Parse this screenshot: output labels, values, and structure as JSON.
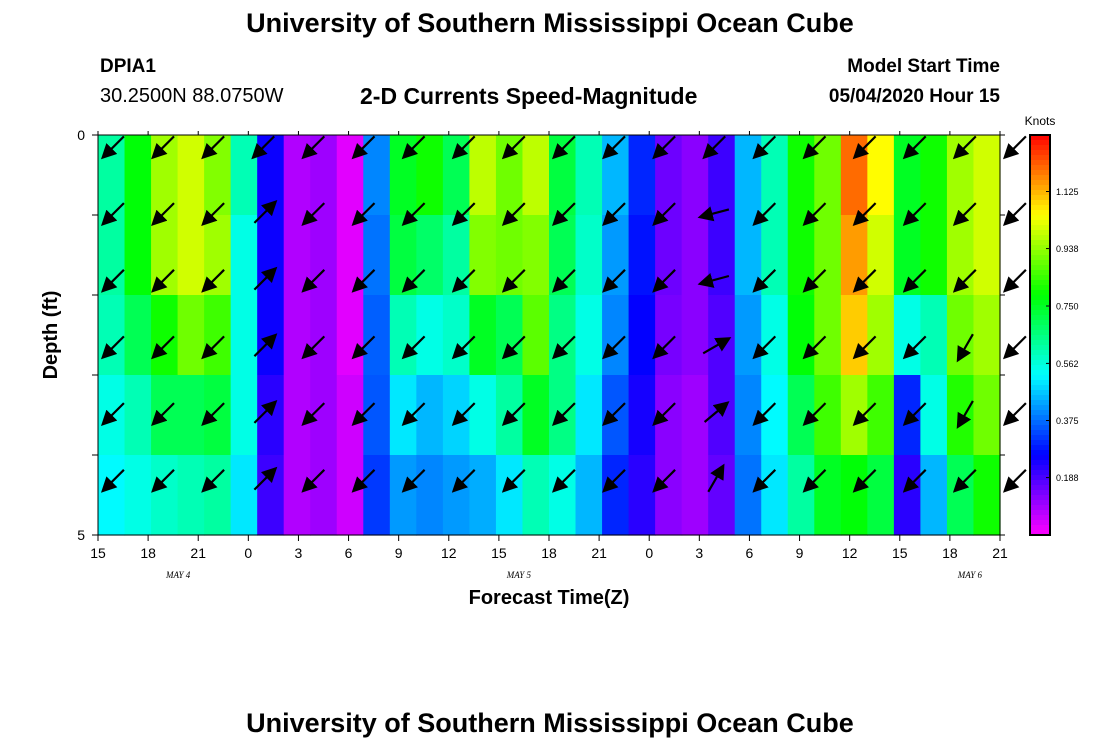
{
  "header": {
    "title": "University of Southern Mississippi Ocean Cube",
    "station": "DPIA1",
    "coordinates": "30.2500N 88.0750W",
    "subtitle": "2-D Currents Speed-Magnitude",
    "model_start_label": "Model Start Time",
    "model_start_value": "05/04/2020 Hour 15"
  },
  "footer": {
    "title": "University of Southern Mississippi Ocean Cube"
  },
  "chart_data": {
    "type": "heatmap",
    "title": "2-D Currents Speed-Magnitude",
    "xlabel": "Forecast Time(Z)",
    "ylabel": "Depth (ft)",
    "ylim": [
      0,
      5
    ],
    "y_tick_labels": [
      "0",
      "5"
    ],
    "x_tick_labels": [
      "15",
      "18",
      "21",
      "0",
      "3",
      "6",
      "9",
      "12",
      "15",
      "18",
      "21",
      "0",
      "3",
      "6",
      "9",
      "12",
      "15",
      "18",
      "21"
    ],
    "date_labels": [
      {
        "label": "MAY 4",
        "hour_index": 4
      },
      {
        "label": "MAY 5",
        "hour_index": 21
      },
      {
        "label": "MAY 6",
        "hour_index": 43.5
      }
    ],
    "hours_from_start": [
      0,
      3,
      6,
      9,
      12,
      15,
      18,
      21,
      24,
      27,
      30,
      33,
      36,
      39,
      42,
      45,
      48,
      51,
      54
    ],
    "depth_levels_ft": [
      "0-1",
      "1-2",
      "2-3",
      "3-4",
      "4-5"
    ],
    "speed_knots_by_depth": [
      [
        0.62,
        0.78,
        0.95,
        1.0,
        0.92,
        0.6,
        0.25,
        0.08,
        0.1,
        0.03,
        0.4,
        0.75,
        0.8,
        0.7,
        0.98,
        0.9,
        0.98,
        0.72,
        0.6,
        0.45,
        0.3,
        0.15,
        0.12,
        0.2,
        0.45,
        0.6,
        0.8,
        0.9,
        1.2,
        1.05,
        0.75,
        0.8,
        0.95,
        1.0
      ],
      [
        0.62,
        0.78,
        0.95,
        1.0,
        0.95,
        0.55,
        0.25,
        0.08,
        0.1,
        0.03,
        0.38,
        0.72,
        0.68,
        0.62,
        0.92,
        0.9,
        0.92,
        0.7,
        0.58,
        0.42,
        0.28,
        0.15,
        0.12,
        0.2,
        0.45,
        0.6,
        0.8,
        0.9,
        1.15,
        1.0,
        0.75,
        0.8,
        0.95,
        1.0
      ],
      [
        0.6,
        0.7,
        0.8,
        0.9,
        0.85,
        0.55,
        0.25,
        0.08,
        0.1,
        0.03,
        0.36,
        0.6,
        0.55,
        0.58,
        0.75,
        0.7,
        0.88,
        0.65,
        0.55,
        0.4,
        0.26,
        0.14,
        0.12,
        0.18,
        0.42,
        0.55,
        0.78,
        0.9,
        1.1,
        0.95,
        0.55,
        0.6,
        0.9,
        0.95
      ],
      [
        0.55,
        0.6,
        0.7,
        0.7,
        0.72,
        0.55,
        0.22,
        0.08,
        0.1,
        0.05,
        0.35,
        0.5,
        0.45,
        0.48,
        0.55,
        0.62,
        0.75,
        0.65,
        0.5,
        0.35,
        0.24,
        0.12,
        0.1,
        0.18,
        0.4,
        0.52,
        0.7,
        0.85,
        0.95,
        0.85,
        0.3,
        0.55,
        0.82,
        0.9
      ],
      [
        0.52,
        0.55,
        0.58,
        0.6,
        0.62,
        0.5,
        0.2,
        0.08,
        0.1,
        0.05,
        0.32,
        0.42,
        0.4,
        0.42,
        0.44,
        0.5,
        0.6,
        0.55,
        0.45,
        0.3,
        0.22,
        0.12,
        0.1,
        0.16,
        0.38,
        0.5,
        0.62,
        0.75,
        0.78,
        0.72,
        0.22,
        0.45,
        0.7,
        0.8
      ]
    ],
    "arrows": {
      "hours": [
        0,
        3,
        6,
        9,
        12,
        15,
        18,
        21,
        24,
        27,
        30,
        33,
        36,
        39,
        42,
        45,
        48,
        51,
        54
      ],
      "direction_deg_by_depth": [
        [
          135,
          135,
          135,
          135,
          135,
          135,
          135,
          135,
          135,
          135,
          135,
          135,
          135,
          135,
          135,
          135,
          135,
          135,
          135
        ],
        [
          135,
          135,
          135,
          315,
          135,
          135,
          135,
          135,
          135,
          135,
          135,
          135,
          165,
          135,
          135,
          135,
          135,
          135,
          135
        ],
        [
          135,
          135,
          135,
          315,
          135,
          135,
          135,
          135,
          135,
          135,
          135,
          135,
          165,
          135,
          135,
          135,
          135,
          135,
          135
        ],
        [
          135,
          135,
          135,
          315,
          135,
          135,
          135,
          135,
          135,
          135,
          135,
          135,
          330,
          135,
          135,
          135,
          135,
          120,
          135
        ],
        [
          135,
          135,
          135,
          315,
          135,
          135,
          135,
          135,
          135,
          135,
          135,
          135,
          320,
          135,
          135,
          135,
          135,
          120,
          135
        ],
        [
          135,
          135,
          135,
          315,
          135,
          135,
          135,
          135,
          135,
          135,
          135,
          135,
          300,
          135,
          135,
          135,
          135,
          135,
          135
        ]
      ]
    },
    "colorbar": {
      "label": "Knots",
      "min": 0,
      "max": 1.31,
      "tick_values": [
        0.188,
        0.375,
        0.562,
        0.75,
        0.938,
        1.125
      ],
      "tick_labels": [
        "0.188",
        "0.375",
        "0.562",
        "0.750",
        "0.938",
        "1.125"
      ]
    }
  }
}
